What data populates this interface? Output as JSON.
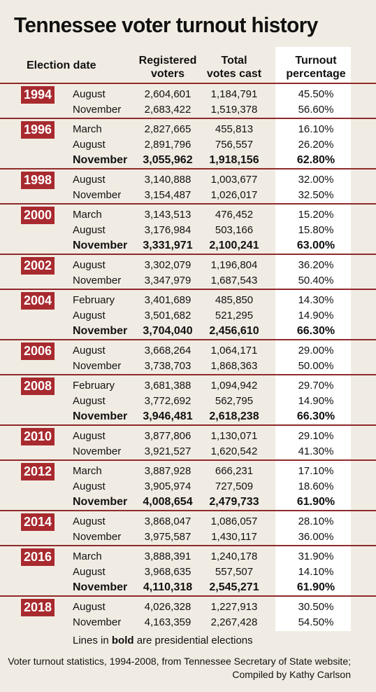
{
  "title": "Tennessee voter turnout history",
  "columns": {
    "date": "Election date",
    "registered": [
      "Registered",
      "voters"
    ],
    "total": [
      "Total",
      "votes cast"
    ],
    "turnout": [
      "Turnout",
      "percentage"
    ]
  },
  "note": {
    "prefix": "Lines in ",
    "bold": "bold",
    "suffix": " are presidential elections"
  },
  "source": [
    "Voter turnout statistics, 1994-2008, from Tennessee Secretary of State website;",
    "Compiled by Kathy Carlson"
  ],
  "chart_data": {
    "type": "table",
    "title": "Tennessee voter turnout history",
    "columns": [
      "Election date",
      "Registered voters",
      "Total votes cast",
      "Turnout percentage"
    ],
    "groups": [
      {
        "year": "1994",
        "rows": [
          {
            "month": "August",
            "registered": "2,604,601",
            "total": "1,184,791",
            "turnout": "45.50%",
            "presidential": false
          },
          {
            "month": "November",
            "registered": "2,683,422",
            "total": "1,519,378",
            "turnout": "56.60%",
            "presidential": false
          }
        ]
      },
      {
        "year": "1996",
        "rows": [
          {
            "month": "March",
            "registered": "2,827,665",
            "total": "455,813",
            "turnout": "16.10%",
            "presidential": false
          },
          {
            "month": "August",
            "registered": "2,891,796",
            "total": "756,557",
            "turnout": "26.20%",
            "presidential": false
          },
          {
            "month": "November",
            "registered": "3,055,962",
            "total": "1,918,156",
            "turnout": "62.80%",
            "presidential": true
          }
        ]
      },
      {
        "year": "1998",
        "rows": [
          {
            "month": "August",
            "registered": "3,140,888",
            "total": "1,003,677",
            "turnout": "32.00%",
            "presidential": false
          },
          {
            "month": "November",
            "registered": "3,154,487",
            "total": "1,026,017",
            "turnout": "32.50%",
            "presidential": false
          }
        ]
      },
      {
        "year": "2000",
        "rows": [
          {
            "month": "March",
            "registered": "3,143,513",
            "total": "476,452",
            "turnout": "15.20%",
            "presidential": false
          },
          {
            "month": "August",
            "registered": "3,176,984",
            "total": "503,166",
            "turnout": "15.80%",
            "presidential": false
          },
          {
            "month": "November",
            "registered": "3,331,971",
            "total": "2,100,241",
            "turnout": "63.00%",
            "presidential": true
          }
        ]
      },
      {
        "year": "2002",
        "rows": [
          {
            "month": "August",
            "registered": "3,302,079",
            "total": "1,196,804",
            "turnout": "36.20%",
            "presidential": false
          },
          {
            "month": "November",
            "registered": "3,347,979",
            "total": "1,687,543",
            "turnout": "50.40%",
            "presidential": false
          }
        ]
      },
      {
        "year": "2004",
        "rows": [
          {
            "month": "February",
            "registered": "3,401,689",
            "total": "485,850",
            "turnout": "14.30%",
            "presidential": false
          },
          {
            "month": "August",
            "registered": "3,501,682",
            "total": "521,295",
            "turnout": "14.90%",
            "presidential": false
          },
          {
            "month": "November",
            "registered": "3,704,040",
            "total": "2,456,610",
            "turnout": "66.30%",
            "presidential": true
          }
        ]
      },
      {
        "year": "2006",
        "rows": [
          {
            "month": "August",
            "registered": "3,668,264",
            "total": "1,064,171",
            "turnout": "29.00%",
            "presidential": false
          },
          {
            "month": "November",
            "registered": "3,738,703",
            "total": "1,868,363",
            "turnout": "50.00%",
            "presidential": false
          }
        ]
      },
      {
        "year": "2008",
        "rows": [
          {
            "month": "February",
            "registered": "3,681,388",
            "total": "1,094,942",
            "turnout": "29.70%",
            "presidential": false
          },
          {
            "month": "August",
            "registered": "3,772,692",
            "total": "562,795",
            "turnout": "14.90%",
            "presidential": false
          },
          {
            "month": "November",
            "registered": "3,946,481",
            "total": "2,618,238",
            "turnout": "66.30%",
            "presidential": true
          }
        ]
      },
      {
        "year": "2010",
        "rows": [
          {
            "month": "August",
            "registered": "3,877,806",
            "total": "1,130,071",
            "turnout": "29.10%",
            "presidential": false
          },
          {
            "month": "November",
            "registered": "3,921,527",
            "total": "1,620,542",
            "turnout": "41.30%",
            "presidential": false
          }
        ]
      },
      {
        "year": "2012",
        "rows": [
          {
            "month": "March",
            "registered": "3,887,928",
            "total": "666,231",
            "turnout": "17.10%",
            "presidential": false
          },
          {
            "month": "August",
            "registered": "3,905,974",
            "total": "727,509",
            "turnout": "18.60%",
            "presidential": false
          },
          {
            "month": "November",
            "registered": "4,008,654",
            "total": "2,479,733",
            "turnout": "61.90%",
            "presidential": true
          }
        ]
      },
      {
        "year": "2014",
        "rows": [
          {
            "month": "August",
            "registered": "3,868,047",
            "total": "1,086,057",
            "turnout": "28.10%",
            "presidential": false
          },
          {
            "month": "November",
            "registered": "3,975,587",
            "total": "1,430,117",
            "turnout": "36.00%",
            "presidential": false
          }
        ]
      },
      {
        "year": "2016",
        "rows": [
          {
            "month": "March",
            "registered": "3,888,391",
            "total": "1,240,178",
            "turnout": "31.90%",
            "presidential": false
          },
          {
            "month": "August",
            "registered": "3,968,635",
            "total": "557,507",
            "turnout": "14.10%",
            "presidential": false
          },
          {
            "month": "November",
            "registered": "4,110,318",
            "total": "2,545,271",
            "turnout": "61.90%",
            "presidential": true
          }
        ]
      },
      {
        "year": "2018",
        "rows": [
          {
            "month": "August",
            "registered": "4,026,328",
            "total": "1,227,913",
            "turnout": "30.50%",
            "presidential": false
          },
          {
            "month": "November",
            "registered": "4,163,359",
            "total": "2,267,428",
            "turnout": "54.50%",
            "presidential": false
          }
        ]
      }
    ]
  }
}
